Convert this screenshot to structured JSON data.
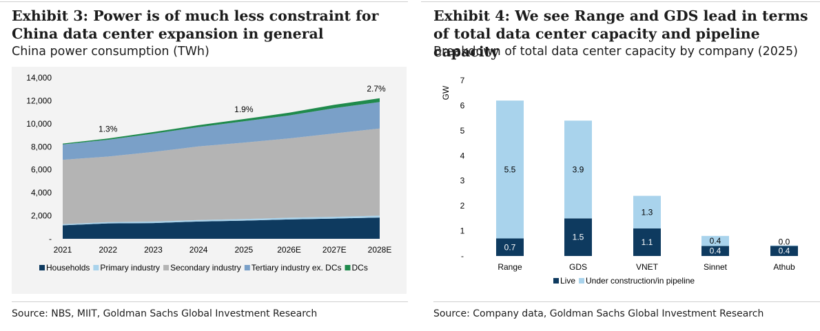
{
  "exhibit3": {
    "title": "Exhibit 3: Power is of much less constraint for China data center expansion in general",
    "subtitle": "China power consumption (TWh)",
    "source": "Source: NBS, MIIT, Goldman Sachs Global Investment Research"
  },
  "exhibit4": {
    "title": "Exhibit 4: We see Range and GDS lead in terms of total data center capacity and pipeline capacity",
    "subtitle": "Breakdown of total data center capacity by company (2025)",
    "source": "Source: Company data, Goldman Sachs Global Investment Research"
  },
  "chart_data": [
    {
      "type": "area",
      "stacked": true,
      "x": [
        "2021",
        "2022",
        "2023",
        "2024",
        "2025",
        "2026E",
        "2027E",
        "2028E"
      ],
      "series": [
        {
          "name": "Households",
          "color": "#0e3a5f",
          "values": [
            1170,
            1340,
            1370,
            1500,
            1580,
            1680,
            1760,
            1850
          ]
        },
        {
          "name": "Primary industry",
          "color": "#a9d3ec",
          "values": [
            100,
            110,
            130,
            130,
            140,
            150,
            150,
            160
          ]
        },
        {
          "name": "Secondary industry",
          "color": "#b4b4b4",
          "values": [
            5600,
            5700,
            6050,
            6400,
            6640,
            6900,
            7250,
            7580
          ]
        },
        {
          "name": "Tertiary industry ex. DCs",
          "color": "#7aa0c8",
          "values": [
            1330,
            1460,
            1590,
            1680,
            1850,
            1990,
            2200,
            2300
          ]
        },
        {
          "name": "DCs",
          "color": "#1f8a4c",
          "values": [
            80,
            110,
            140,
            170,
            200,
            240,
            290,
            330
          ]
        }
      ],
      "annotations": [
        {
          "x": "2022",
          "text": "1.3%"
        },
        {
          "x": "2025",
          "text": "1.9%"
        },
        {
          "x": "2028E",
          "text": "2.7%"
        }
      ],
      "yticks": [
        "-",
        "2,000",
        "4,000",
        "6,000",
        "8,000",
        "10,000",
        "12,000",
        "14,000"
      ],
      "ylim": [
        0,
        14000
      ],
      "xlabel": "",
      "ylabel": "",
      "legend": "bottom",
      "grid": false
    },
    {
      "type": "bar",
      "stacked": true,
      "categories": [
        "Range",
        "GDS",
        "VNET",
        "Sinnet",
        "Athub"
      ],
      "series": [
        {
          "name": "Live",
          "color": "#0e3a5f",
          "values": [
            0.7,
            1.5,
            1.1,
            0.4,
            0.4
          ]
        },
        {
          "name": "Under construction/in pipeline",
          "color": "#a9d3ec",
          "values": [
            5.5,
            3.9,
            1.3,
            0.4,
            0.0
          ]
        }
      ],
      "data_labels": {
        "Live": [
          "0.7",
          "1.5",
          "1.1",
          "0.4",
          "0.4"
        ],
        "Under construction/in pipeline": [
          "5.5",
          "3.9",
          "1.3",
          "0.4",
          "0.0"
        ]
      },
      "yticks": [
        "-",
        "1",
        "2",
        "3",
        "4",
        "5",
        "6",
        "7"
      ],
      "ylim": [
        0,
        7
      ],
      "xlabel": "",
      "ylabel": "GW",
      "legend": "bottom",
      "grid": false
    }
  ]
}
